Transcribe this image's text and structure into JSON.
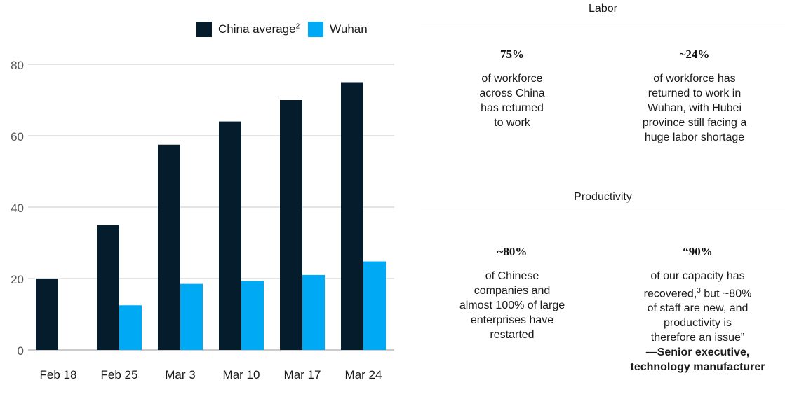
{
  "chart_data": {
    "type": "bar",
    "categories": [
      "Feb 18",
      "Feb 25",
      "Mar 3",
      "Mar 10",
      "Mar 17",
      "Mar 24"
    ],
    "series": [
      {
        "name": "China average",
        "values": [
          20,
          35,
          57.5,
          64,
          70,
          75
        ]
      },
      {
        "name": "Wuhan",
        "values": [
          0,
          12.5,
          18.5,
          19.3,
          21,
          24.8
        ]
      }
    ],
    "ylim": [
      0,
      80
    ],
    "yticks": [
      0,
      20,
      40,
      60,
      80
    ],
    "grid": true,
    "legend": "top-right",
    "colors": {
      "china": "#051c2c",
      "wuhan": "#00a9f4"
    }
  },
  "legend": {
    "china_label": "China average",
    "china_sup": "2",
    "wuhan_label": "Wuhan"
  },
  "labor": {
    "title": "Labor",
    "left": {
      "stat": "75%",
      "lines": [
        "of workforce",
        "across China",
        "has returned",
        "to work"
      ]
    },
    "right": {
      "stat": "~24%",
      "lines": [
        "of workforce has",
        "returned to work in",
        "Wuhan, with Hubei",
        "province still facing a",
        "huge labor shortage"
      ]
    }
  },
  "productivity": {
    "title": "Productivity",
    "left": {
      "stat": "~80%",
      "lines": [
        "of Chinese",
        "companies and",
        "almost 100% of large",
        "enterprises have",
        "restarted"
      ]
    },
    "right": {
      "stat": "“90%",
      "line1": "of our capacity has",
      "line2_a": "recovered,",
      "line2_sup": "3",
      "line2_b": " but ~80%",
      "lines_rest": [
        "of staff are new, and",
        "productivity is",
        "therefore an issue”"
      ],
      "attribution": [
        "—Senior executive,",
        "technology manufacturer"
      ]
    }
  }
}
